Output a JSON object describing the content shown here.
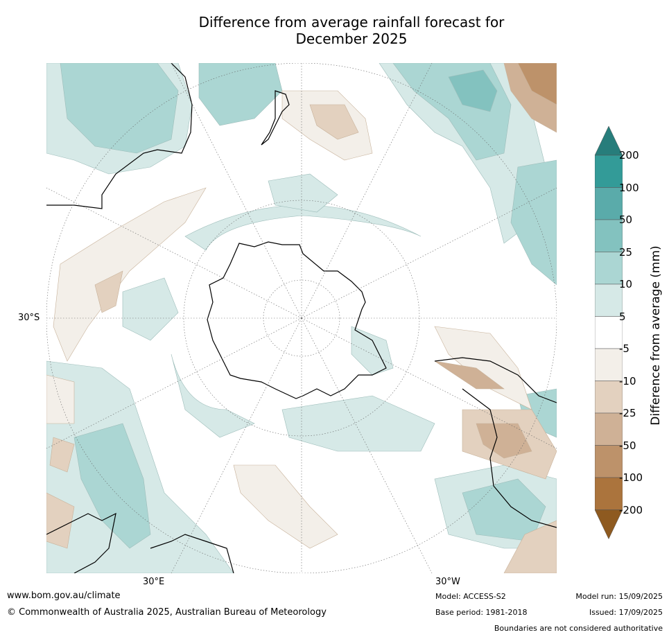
{
  "title_line1": "Difference from average rainfall forecast for",
  "title_line2": "December 2025",
  "map": {
    "projection": "south polar stereographic",
    "lat_label": "30°S",
    "lon_labels": {
      "east": "30°E",
      "west": "30°W"
    }
  },
  "colorbar": {
    "label": "Difference from average (mm)",
    "ticks": [
      "200",
      "100",
      "50",
      "25",
      "10",
      "5",
      "-5",
      "-10",
      "-25",
      "-50",
      "-100",
      "-200"
    ],
    "colors": {
      "extend_high": "#277d7b",
      "gt100": "#339b98",
      "50_100": "#5aabaa",
      "25_50": "#83c2bf",
      "10_25": "#abd6d3",
      "5_10": "#d6e9e7",
      "neutral": "#ffffff",
      "m10_m5": "#f3efe9",
      "m25_m10": "#e3d1bf",
      "m50_m25": "#cfb196",
      "m100_m50": "#bd926a",
      "lt_m100": "#ab743d",
      "extend_low": "#8e5a20"
    }
  },
  "footer": {
    "website": "www.bom.gov.au/climate",
    "copyright": "© Commonwealth of Australia 2025, Australian Bureau of Meteorology",
    "model": "Model: ACCESS-S2",
    "base_period": "Base period: 1981-2018",
    "model_run": "Model run: 15/09/2025",
    "issued": "Issued: 17/09/2025",
    "disclaimer": "Boundaries are not considered authoritative"
  }
}
